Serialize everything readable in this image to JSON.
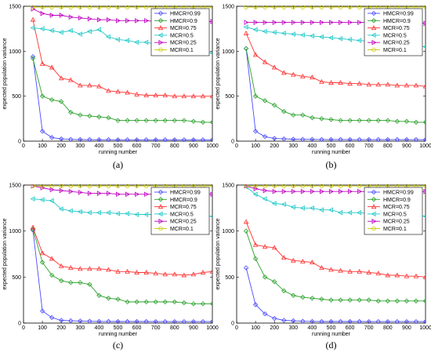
{
  "chart_data": [
    {
      "type": "line",
      "caption": "(a)",
      "xlabel": "running number",
      "ylabel": "expected population variance",
      "xlim": [
        0,
        1000
      ],
      "ylim": [
        0,
        1500
      ],
      "xticks": [
        0,
        100,
        200,
        300,
        400,
        500,
        600,
        700,
        800,
        900,
        1000
      ],
      "yticks": [
        0,
        500,
        1000,
        1500
      ],
      "legend_position": "top-right",
      "x": [
        50,
        100,
        150,
        200,
        250,
        300,
        350,
        400,
        450,
        500,
        550,
        600,
        650,
        700,
        750,
        800,
        850,
        900,
        950,
        1000
      ],
      "series": [
        {
          "name": "HMCR=0.99",
          "color": "#4a4aff",
          "marker": "diamond",
          "values": [
            940,
            110,
            40,
            25,
            20,
            18,
            17,
            16,
            16,
            15,
            15,
            15,
            15,
            15,
            15,
            15,
            15,
            15,
            15,
            15
          ]
        },
        {
          "name": "HMCR=0.9",
          "color": "#2aa02a",
          "marker": "diamond",
          "values": [
            920,
            500,
            460,
            440,
            320,
            290,
            280,
            270,
            260,
            230,
            230,
            230,
            230,
            230,
            230,
            230,
            230,
            220,
            210,
            210
          ]
        },
        {
          "name": "MCR=0.75",
          "color": "#ff3030",
          "marker": "triangle-up",
          "values": [
            1350,
            860,
            820,
            700,
            680,
            620,
            620,
            610,
            560,
            550,
            540,
            520,
            510,
            510,
            510,
            500,
            500,
            500,
            500,
            500
          ]
        },
        {
          "name": "MCR=0.5",
          "color": "#20c8c8",
          "marker": "triangle-left",
          "values": [
            1260,
            1250,
            1230,
            1210,
            1230,
            1190,
            1220,
            1240,
            1160,
            1130,
            1120,
            1100,
            1100,
            1080,
            1060,
            1060,
            1050,
            1040,
            1000,
            980
          ]
        },
        {
          "name": "MCR=0.25",
          "color": "#c000c0",
          "marker": "triangle-right",
          "values": [
            1470,
            1420,
            1400,
            1400,
            1380,
            1370,
            1360,
            1350,
            1350,
            1340,
            1340,
            1340,
            1340,
            1330,
            1330,
            1330,
            1330,
            1330,
            1330,
            1330
          ]
        },
        {
          "name": "MCR=0.1",
          "color": "#c8c800",
          "marker": "circle",
          "values": [
            1490,
            1490,
            1490,
            1490,
            1490,
            1490,
            1490,
            1490,
            1490,
            1490,
            1490,
            1490,
            1490,
            1490,
            1490,
            1490,
            1490,
            1490,
            1490,
            1490
          ]
        }
      ]
    },
    {
      "type": "line",
      "caption": "(b)",
      "xlabel": "running number",
      "ylabel": "expected population variance",
      "xlim": [
        0,
        1000
      ],
      "ylim": [
        0,
        1500
      ],
      "xticks": [
        0,
        100,
        200,
        300,
        400,
        500,
        600,
        700,
        800,
        900,
        1000
      ],
      "yticks": [
        0,
        500,
        1000,
        1500
      ],
      "legend_position": "top-right",
      "x": [
        50,
        100,
        150,
        200,
        250,
        300,
        350,
        400,
        450,
        500,
        550,
        600,
        650,
        700,
        750,
        800,
        850,
        900,
        950,
        1000
      ],
      "series": [
        {
          "name": "HMCR=0.99",
          "color": "#4a4aff",
          "marker": "diamond",
          "values": [
            1030,
            110,
            50,
            30,
            25,
            22,
            20,
            20,
            18,
            18,
            18,
            17,
            17,
            17,
            17,
            17,
            17,
            17,
            17,
            17
          ]
        },
        {
          "name": "HMCR=0.9",
          "color": "#2aa02a",
          "marker": "diamond",
          "values": [
            1030,
            500,
            450,
            400,
            330,
            290,
            290,
            260,
            250,
            240,
            230,
            230,
            230,
            230,
            230,
            230,
            220,
            220,
            210,
            210
          ]
        },
        {
          "name": "MCR=0.75",
          "color": "#ff3030",
          "marker": "triangle-up",
          "values": [
            1200,
            960,
            880,
            820,
            760,
            740,
            720,
            710,
            660,
            650,
            650,
            640,
            640,
            630,
            630,
            630,
            620,
            620,
            620,
            610
          ]
        },
        {
          "name": "MCR=0.5",
          "color": "#20c8c8",
          "marker": "triangle-left",
          "values": [
            1270,
            1240,
            1220,
            1210,
            1200,
            1190,
            1180,
            1170,
            1160,
            1150,
            1140,
            1130,
            1120,
            1110,
            1100,
            1090,
            1080,
            1070,
            1060,
            1050
          ]
        },
        {
          "name": "MCR=0.25",
          "color": "#c000c0",
          "marker": "triangle-right",
          "values": [
            1320,
            1320,
            1320,
            1320,
            1320,
            1320,
            1320,
            1320,
            1320,
            1320,
            1320,
            1320,
            1320,
            1320,
            1320,
            1320,
            1320,
            1320,
            1320,
            1310
          ]
        },
        {
          "name": "MCR=0.1",
          "color": "#c8c800",
          "marker": "circle",
          "values": [
            1490,
            1490,
            1490,
            1490,
            1490,
            1490,
            1490,
            1490,
            1490,
            1490,
            1490,
            1490,
            1490,
            1490,
            1490,
            1490,
            1490,
            1490,
            1490,
            1490
          ]
        }
      ]
    },
    {
      "type": "line",
      "caption": "(c)",
      "xlabel": "running number",
      "ylabel": "expected population variance",
      "xlim": [
        0,
        1000
      ],
      "ylim": [
        0,
        1500
      ],
      "xticks": [
        0,
        100,
        200,
        300,
        400,
        500,
        600,
        700,
        800,
        900,
        1000
      ],
      "yticks": [
        0,
        500,
        1000,
        1500
      ],
      "legend_position": "top-right",
      "x": [
        50,
        100,
        150,
        200,
        250,
        300,
        350,
        400,
        450,
        500,
        550,
        600,
        650,
        700,
        750,
        800,
        850,
        900,
        950,
        1000
      ],
      "series": [
        {
          "name": "HMCR=0.99",
          "color": "#4a4aff",
          "marker": "diamond",
          "values": [
            1010,
            130,
            60,
            30,
            25,
            22,
            20,
            18,
            18,
            17,
            17,
            17,
            17,
            16,
            16,
            16,
            16,
            16,
            16,
            16
          ]
        },
        {
          "name": "HMCR=0.9",
          "color": "#2aa02a",
          "marker": "diamond",
          "values": [
            1020,
            660,
            520,
            460,
            440,
            440,
            420,
            300,
            270,
            260,
            230,
            230,
            230,
            230,
            230,
            230,
            220,
            210,
            210,
            210
          ]
        },
        {
          "name": "MCR=0.75",
          "color": "#ff3030",
          "marker": "triangle-up",
          "values": [
            1040,
            760,
            700,
            620,
            600,
            590,
            590,
            590,
            580,
            560,
            560,
            550,
            550,
            540,
            530,
            530,
            520,
            530,
            550,
            560
          ]
        },
        {
          "name": "MCR=0.5",
          "color": "#20c8c8",
          "marker": "triangle-left",
          "values": [
            1350,
            1340,
            1330,
            1240,
            1220,
            1210,
            1200,
            1200,
            1200,
            1190,
            1190,
            1180,
            1180,
            1180,
            1180,
            1170,
            1170,
            1170,
            1160,
            1160
          ]
        },
        {
          "name": "MCR=0.25",
          "color": "#c000c0",
          "marker": "triangle-right",
          "values": [
            1490,
            1470,
            1450,
            1440,
            1430,
            1420,
            1410,
            1410,
            1410,
            1400,
            1400,
            1400,
            1400,
            1400,
            1400,
            1400,
            1400,
            1400,
            1400,
            1400
          ]
        },
        {
          "name": "MCR=0.1",
          "color": "#c8c800",
          "marker": "circle",
          "values": [
            1490,
            1490,
            1490,
            1490,
            1490,
            1490,
            1490,
            1490,
            1490,
            1490,
            1490,
            1490,
            1490,
            1490,
            1490,
            1490,
            1490,
            1490,
            1490,
            1490
          ]
        }
      ]
    },
    {
      "type": "line",
      "caption": "(d)",
      "xlabel": "running number",
      "ylabel": "expected population variance",
      "xlim": [
        0,
        1000
      ],
      "ylim": [
        0,
        1500
      ],
      "xticks": [
        0,
        100,
        200,
        300,
        400,
        500,
        600,
        700,
        800,
        900,
        1000
      ],
      "yticks": [
        0,
        500,
        1000,
        1500
      ],
      "legend_position": "top-right",
      "x": [
        50,
        100,
        150,
        200,
        250,
        300,
        350,
        400,
        450,
        500,
        550,
        600,
        650,
        700,
        750,
        800,
        850,
        900,
        950,
        1000
      ],
      "series": [
        {
          "name": "HMCR=0.99",
          "color": "#4a4aff",
          "marker": "diamond",
          "values": [
            600,
            200,
            100,
            50,
            30,
            25,
            20,
            18,
            17,
            17,
            17,
            17,
            17,
            16,
            16,
            16,
            16,
            16,
            16,
            16
          ]
        },
        {
          "name": "HMCR=0.9",
          "color": "#2aa02a",
          "marker": "diamond",
          "values": [
            1000,
            700,
            500,
            450,
            350,
            300,
            280,
            270,
            260,
            250,
            250,
            250,
            250,
            250,
            240,
            240,
            240,
            240,
            240,
            240
          ]
        },
        {
          "name": "MCR=0.75",
          "color": "#ff3030",
          "marker": "triangle-up",
          "values": [
            1100,
            850,
            830,
            820,
            710,
            680,
            670,
            660,
            600,
            580,
            570,
            560,
            560,
            550,
            540,
            520,
            520,
            510,
            510,
            500
          ]
        },
        {
          "name": "MCR=0.5",
          "color": "#20c8c8",
          "marker": "triangle-left",
          "values": [
            1480,
            1400,
            1350,
            1300,
            1290,
            1260,
            1250,
            1250,
            1230,
            1230,
            1200,
            1200,
            1200,
            1190,
            1190,
            1180,
            1180,
            1170,
            1170,
            1160
          ]
        },
        {
          "name": "MCR=0.25",
          "color": "#c000c0",
          "marker": "triangle-right",
          "values": [
            1490,
            1460,
            1440,
            1430,
            1430,
            1430,
            1430,
            1430,
            1430,
            1430,
            1430,
            1430,
            1430,
            1430,
            1430,
            1430,
            1430,
            1430,
            1430,
            1430
          ]
        },
        {
          "name": "MCR=0.1",
          "color": "#c8c800",
          "marker": "circle",
          "values": [
            1490,
            1490,
            1490,
            1490,
            1490,
            1490,
            1490,
            1490,
            1490,
            1490,
            1490,
            1490,
            1490,
            1490,
            1490,
            1490,
            1490,
            1490,
            1490,
            1490
          ]
        }
      ]
    }
  ]
}
